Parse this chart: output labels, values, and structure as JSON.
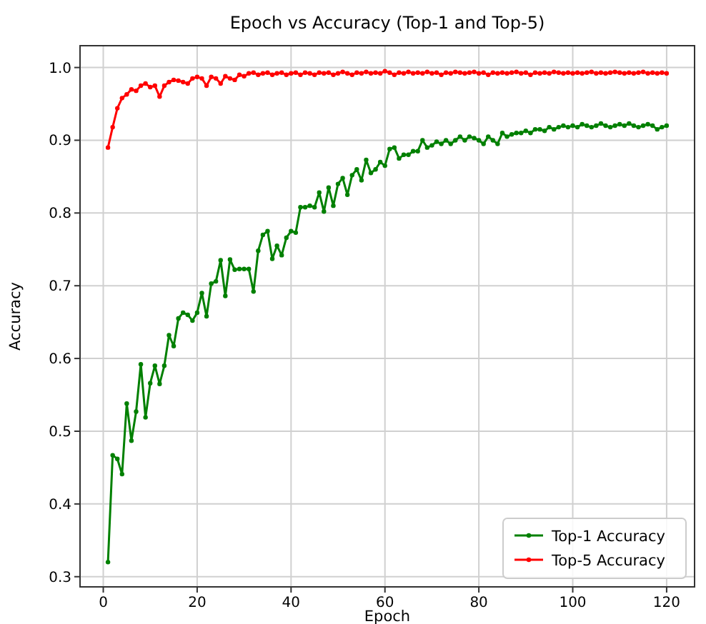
{
  "chart_data": {
    "type": "line",
    "title": "Epoch vs Accuracy (Top-1 and Top-5)",
    "xlabel": "Epoch",
    "ylabel": "Accuracy",
    "x": [
      1,
      2,
      3,
      4,
      5,
      6,
      7,
      8,
      9,
      10,
      11,
      12,
      13,
      14,
      15,
      16,
      17,
      18,
      19,
      20,
      21,
      22,
      23,
      24,
      25,
      26,
      27,
      28,
      29,
      30,
      31,
      32,
      33,
      34,
      35,
      36,
      37,
      38,
      39,
      40,
      41,
      42,
      43,
      44,
      45,
      46,
      47,
      48,
      49,
      50,
      51,
      52,
      53,
      54,
      55,
      56,
      57,
      58,
      59,
      60,
      61,
      62,
      63,
      64,
      65,
      66,
      67,
      68,
      69,
      70,
      71,
      72,
      73,
      74,
      75,
      76,
      77,
      78,
      79,
      80,
      81,
      82,
      83,
      84,
      85,
      86,
      87,
      88,
      89,
      90,
      91,
      92,
      93,
      94,
      95,
      96,
      97,
      98,
      99,
      100,
      101,
      102,
      103,
      104,
      105,
      106,
      107,
      108,
      109,
      110,
      111,
      112,
      113,
      114,
      115,
      116,
      117,
      118,
      119,
      120
    ],
    "series": [
      {
        "name": "Top-1 Accuracy",
        "color": "#008000",
        "values": [
          0.32,
          0.467,
          0.462,
          0.441,
          0.538,
          0.487,
          0.527,
          0.592,
          0.519,
          0.566,
          0.59,
          0.565,
          0.59,
          0.632,
          0.617,
          0.655,
          0.663,
          0.66,
          0.652,
          0.663,
          0.69,
          0.658,
          0.703,
          0.706,
          0.735,
          0.686,
          0.736,
          0.722,
          0.723,
          0.723,
          0.723,
          0.692,
          0.748,
          0.77,
          0.775,
          0.737,
          0.755,
          0.742,
          0.766,
          0.775,
          0.773,
          0.808,
          0.808,
          0.81,
          0.808,
          0.828,
          0.802,
          0.835,
          0.81,
          0.84,
          0.848,
          0.825,
          0.852,
          0.86,
          0.845,
          0.873,
          0.855,
          0.86,
          0.87,
          0.865,
          0.888,
          0.89,
          0.875,
          0.88,
          0.88,
          0.885,
          0.885,
          0.9,
          0.89,
          0.893,
          0.898,
          0.895,
          0.9,
          0.895,
          0.9,
          0.905,
          0.9,
          0.905,
          0.903,
          0.9,
          0.895,
          0.905,
          0.9,
          0.895,
          0.91,
          0.905,
          0.908,
          0.91,
          0.91,
          0.913,
          0.91,
          0.915,
          0.915,
          0.913,
          0.918,
          0.915,
          0.918,
          0.92,
          0.918,
          0.92,
          0.918,
          0.922,
          0.92,
          0.918,
          0.92,
          0.923,
          0.92,
          0.918,
          0.92,
          0.922,
          0.92,
          0.923,
          0.92,
          0.918,
          0.92,
          0.922,
          0.92,
          0.915,
          0.918,
          0.92
        ]
      },
      {
        "name": "Top-5 Accuracy",
        "color": "#ff0000",
        "values": [
          0.89,
          0.918,
          0.944,
          0.958,
          0.963,
          0.97,
          0.968,
          0.975,
          0.978,
          0.973,
          0.975,
          0.96,
          0.975,
          0.98,
          0.983,
          0.982,
          0.98,
          0.978,
          0.985,
          0.987,
          0.985,
          0.975,
          0.987,
          0.985,
          0.978,
          0.988,
          0.985,
          0.983,
          0.99,
          0.988,
          0.992,
          0.993,
          0.99,
          0.992,
          0.993,
          0.99,
          0.992,
          0.993,
          0.99,
          0.992,
          0.993,
          0.99,
          0.993,
          0.992,
          0.99,
          0.993,
          0.992,
          0.993,
          0.99,
          0.992,
          0.994,
          0.992,
          0.99,
          0.993,
          0.992,
          0.994,
          0.992,
          0.993,
          0.992,
          0.995,
          0.993,
          0.99,
          0.993,
          0.992,
          0.994,
          0.992,
          0.993,
          0.992,
          0.994,
          0.992,
          0.993,
          0.99,
          0.993,
          0.992,
          0.994,
          0.993,
          0.992,
          0.993,
          0.994,
          0.992,
          0.993,
          0.99,
          0.993,
          0.992,
          0.993,
          0.992,
          0.993,
          0.994,
          0.992,
          0.993,
          0.99,
          0.993,
          0.992,
          0.993,
          0.992,
          0.994,
          0.993,
          0.992,
          0.993,
          0.992,
          0.993,
          0.992,
          0.993,
          0.994,
          0.992,
          0.993,
          0.992,
          0.993,
          0.994,
          0.993,
          0.992,
          0.993,
          0.992,
          0.993,
          0.994,
          0.992,
          0.993,
          0.992,
          0.993,
          0.992
        ]
      }
    ],
    "xlim": [
      -4.95,
      125.95
    ],
    "ylim": [
      0.286,
      1.03
    ],
    "xticks": [
      0,
      20,
      40,
      60,
      80,
      100,
      120
    ],
    "yticks": [
      {
        "value": 0.3,
        "label": "0.3"
      },
      {
        "value": 0.4,
        "label": "0.4"
      },
      {
        "value": 0.5,
        "label": "0.5"
      },
      {
        "value": 0.6,
        "label": "0.6"
      },
      {
        "value": 0.7,
        "label": "0.7"
      },
      {
        "value": 0.8,
        "label": "0.8"
      },
      {
        "value": 0.9,
        "label": "0.9"
      },
      {
        "value": 1.0,
        "label": "1.0"
      }
    ],
    "grid": true,
    "legend": "bottom right",
    "marker": "circle",
    "line_style": "solid"
  }
}
